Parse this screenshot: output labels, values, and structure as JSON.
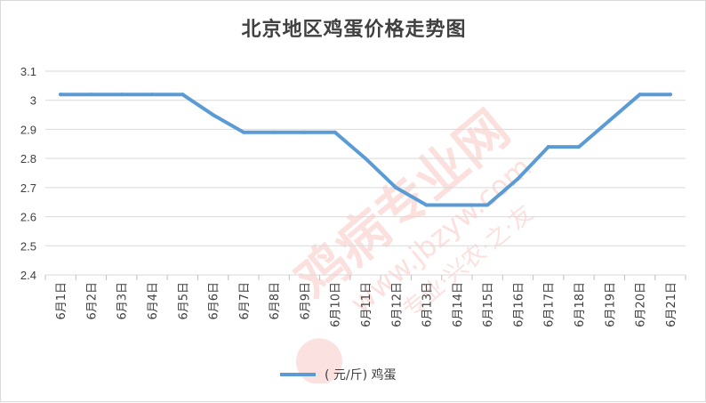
{
  "chart_data": {
    "type": "line",
    "title": "北京地区鸡蛋价格走势图",
    "categories": [
      "6月1日",
      "6月2日",
      "6月3日",
      "6月4日",
      "6月5日",
      "6月6日",
      "6月7日",
      "6月8日",
      "6月9日",
      "6月10日",
      "6月11日",
      "6月12日",
      "6月13日",
      "6月14日",
      "6月15日",
      "6月16日",
      "6月17日",
      "6月18日",
      "6月19日",
      "6月20日",
      "6月21日"
    ],
    "series": [
      {
        "name": "（元/斤）鸡蛋",
        "color": "#5b9bd5",
        "values": [
          3.02,
          3.02,
          3.02,
          3.02,
          3.02,
          2.95,
          2.89,
          2.89,
          2.89,
          2.89,
          2.8,
          2.7,
          2.64,
          2.64,
          2.64,
          2.73,
          2.84,
          2.84,
          2.93,
          3.02,
          3.02
        ]
      }
    ],
    "ylim": [
      2.4,
      3.1
    ],
    "yticks": [
      "2.4",
      "2.5",
      "2.6",
      "2.7",
      "2.8",
      "2.9",
      "3",
      "3.1"
    ],
    "xlabel": "",
    "ylabel": "",
    "grid": true,
    "legend_position": "bottom"
  },
  "legend_label": "( 元/斤)  鸡蛋",
  "watermark": {
    "text_main": "鸡病专业网",
    "text_url": "www.jbzyw.com",
    "text_sub": "专业·兴农·之·友",
    "color": "#e8463a"
  }
}
